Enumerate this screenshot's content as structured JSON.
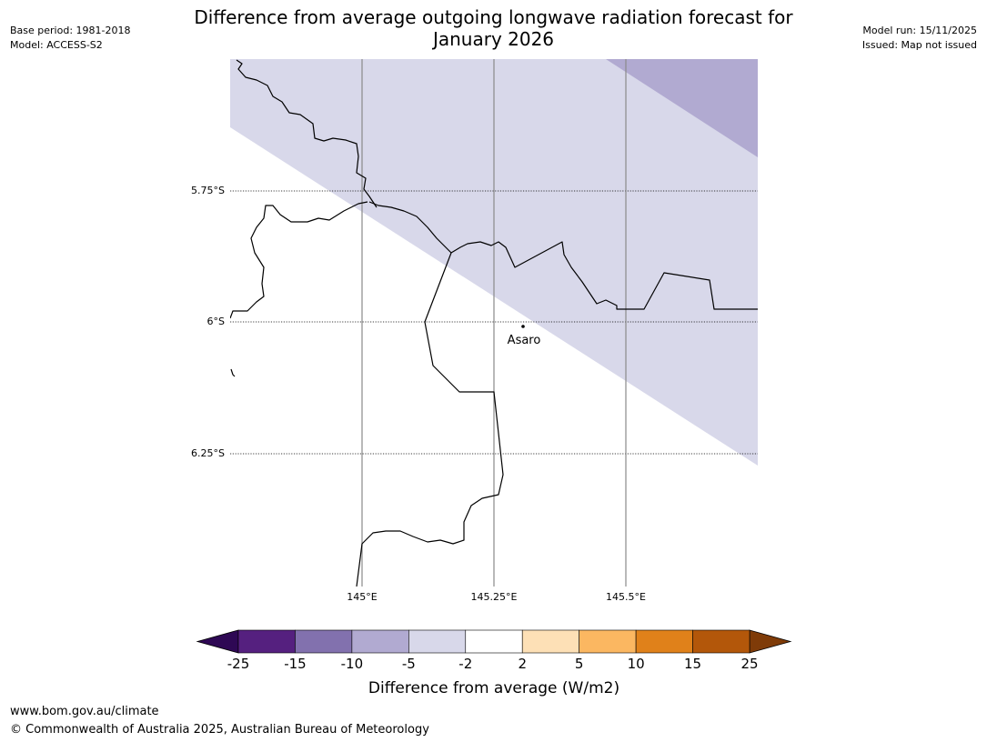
{
  "title_line1": "Difference from average outgoing longwave radiation forecast for",
  "title_line2": "January 2026",
  "meta": {
    "base_period": "Base period: 1981-2018",
    "model": "Model: ACCESS-S2",
    "model_run": "Model run: 15/11/2025",
    "issued": "Issued: Map not issued"
  },
  "map": {
    "lat_labels": [
      "5.75°S",
      "6°S",
      "6.25°S"
    ],
    "lon_labels": [
      "145°E",
      "145.25°E",
      "145.5°E"
    ],
    "place": {
      "name": "Asaro"
    },
    "shading": [
      {
        "category": "-5 to -2",
        "color": "#d8d8ea"
      },
      {
        "category": "-10 to -5",
        "color": "#b1aad1"
      }
    ]
  },
  "legend": {
    "title": "Difference from average (W/m2)",
    "ticks": [
      "-25",
      "-15",
      "-10",
      "-5",
      "-2",
      "2",
      "5",
      "10",
      "15",
      "25"
    ],
    "colors": [
      "#55207f",
      "#8271ae",
      "#b1aad1",
      "#d8d8ea",
      "#ffffff",
      "#fde0b6",
      "#fbb761",
      "#e0811a",
      "#b3570a"
    ],
    "low_extend_color": "#2e0854",
    "high_extend_color": "#7f3b08"
  },
  "footer": {
    "url": "www.bom.gov.au/climate",
    "copyright": "© Commonwealth of Australia 2025, Australian Bureau of Meteorology"
  }
}
